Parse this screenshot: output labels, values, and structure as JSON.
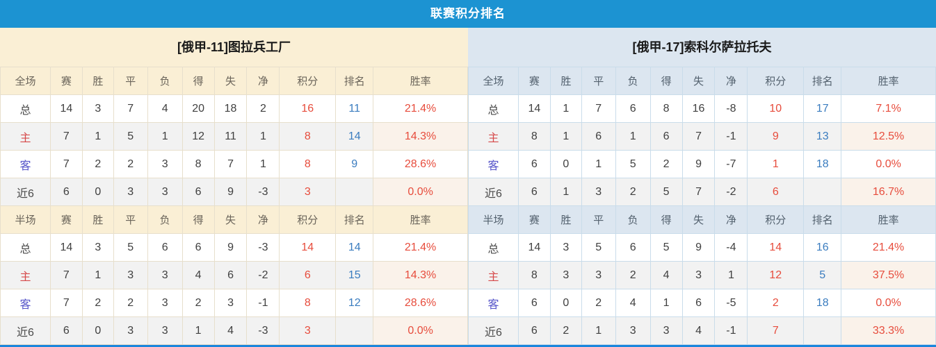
{
  "title": "联赛积分排名",
  "columns_full": [
    "全场",
    "赛",
    "胜",
    "平",
    "负",
    "得",
    "失",
    "净",
    "积分",
    "排名",
    "胜率"
  ],
  "columns_half": [
    "半场",
    "赛",
    "胜",
    "平",
    "负",
    "得",
    "失",
    "净",
    "积分",
    "排名",
    "胜率"
  ],
  "colors": {
    "title_bar_blue": "#1c93d2",
    "left_theme_cream": "#faefd5",
    "right_theme_blue": "#dce6f0",
    "points_red": "#e74c3c",
    "rank_blue": "#3a7cbf",
    "home_label_red": "#d6494a",
    "away_label_blue": "#5654c9",
    "bottom_border_blue": "#1a86dc"
  },
  "tables": [
    {
      "team": "[俄甲-11]图拉兵工厂",
      "full": [
        [
          "总",
          "14",
          "3",
          "7",
          "4",
          "20",
          "18",
          "2",
          "16",
          "11",
          "21.4%"
        ],
        [
          "主",
          "7",
          "1",
          "5",
          "1",
          "12",
          "11",
          "1",
          "8",
          "14",
          "14.3%"
        ],
        [
          "客",
          "7",
          "2",
          "2",
          "3",
          "8",
          "7",
          "1",
          "8",
          "9",
          "28.6%"
        ],
        [
          "近6",
          "6",
          "0",
          "3",
          "3",
          "6",
          "9",
          "-3",
          "3",
          "",
          "0.0%"
        ]
      ],
      "half": [
        [
          "总",
          "14",
          "3",
          "5",
          "6",
          "6",
          "9",
          "-3",
          "14",
          "14",
          "21.4%"
        ],
        [
          "主",
          "7",
          "1",
          "3",
          "3",
          "4",
          "6",
          "-2",
          "6",
          "15",
          "14.3%"
        ],
        [
          "客",
          "7",
          "2",
          "2",
          "3",
          "2",
          "3",
          "-1",
          "8",
          "12",
          "28.6%"
        ],
        [
          "近6",
          "6",
          "0",
          "3",
          "3",
          "1",
          "4",
          "-3",
          "3",
          "",
          "0.0%"
        ]
      ]
    },
    {
      "team": "[俄甲-17]索科尔萨拉托夫",
      "full": [
        [
          "总",
          "14",
          "1",
          "7",
          "6",
          "8",
          "16",
          "-8",
          "10",
          "17",
          "7.1%"
        ],
        [
          "主",
          "8",
          "1",
          "6",
          "1",
          "6",
          "7",
          "-1",
          "9",
          "13",
          "12.5%"
        ],
        [
          "客",
          "6",
          "0",
          "1",
          "5",
          "2",
          "9",
          "-7",
          "1",
          "18",
          "0.0%"
        ],
        [
          "近6",
          "6",
          "1",
          "3",
          "2",
          "5",
          "7",
          "-2",
          "6",
          "",
          "16.7%"
        ]
      ],
      "half": [
        [
          "总",
          "14",
          "3",
          "5",
          "6",
          "5",
          "9",
          "-4",
          "14",
          "16",
          "21.4%"
        ],
        [
          "主",
          "8",
          "3",
          "3",
          "2",
          "4",
          "3",
          "1",
          "12",
          "5",
          "37.5%"
        ],
        [
          "客",
          "6",
          "0",
          "2",
          "4",
          "1",
          "6",
          "-5",
          "2",
          "18",
          "0.0%"
        ],
        [
          "近6",
          "6",
          "2",
          "1",
          "3",
          "3",
          "4",
          "-1",
          "7",
          "",
          "33.3%"
        ]
      ]
    }
  ]
}
